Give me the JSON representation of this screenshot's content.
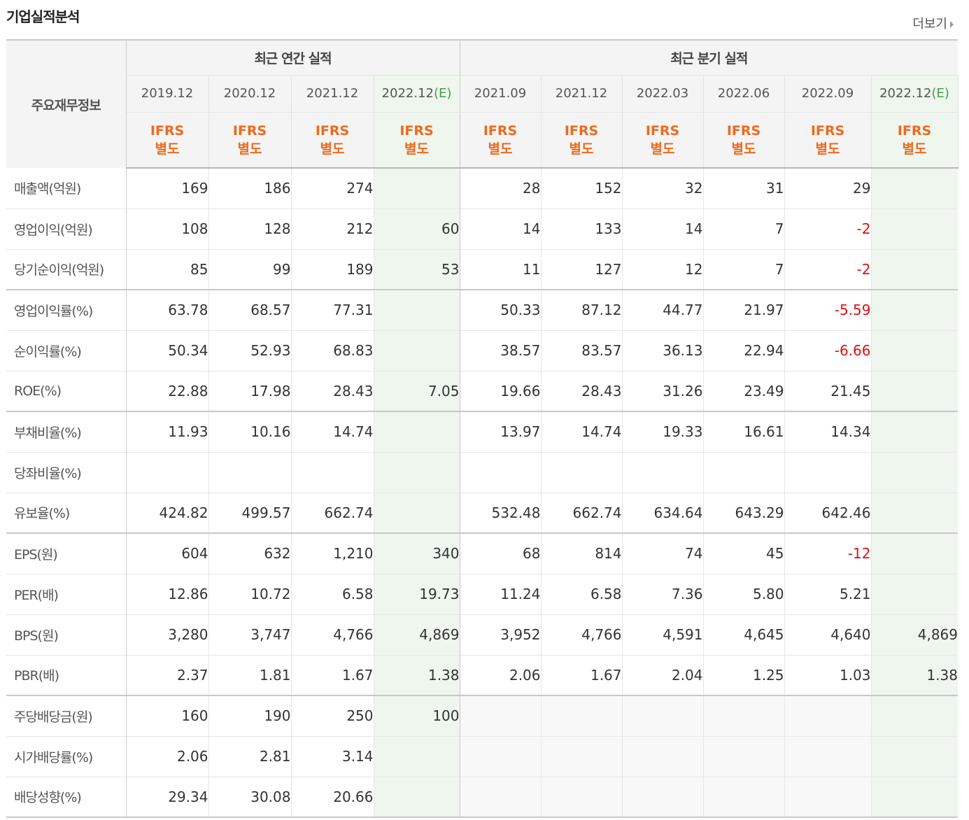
{
  "section": {
    "title": "기업실적분석",
    "more_label": "더보기"
  },
  "header": {
    "corner_label": "주요재무정보",
    "annual_group": "최근 연간 실적",
    "quarter_group": "최근 분기 실적",
    "estimate_mark": "(E)",
    "standard_line1": "IFRS",
    "standard_line2": "별도",
    "columns": [
      "2019.12",
      "2020.12",
      "2021.12",
      "2022.12",
      "2021.09",
      "2021.12",
      "2022.03",
      "2022.06",
      "2022.09",
      "2022.12"
    ]
  },
  "rows": [
    {
      "label": "매출액(억원)",
      "values": [
        "169",
        "186",
        "274",
        "",
        "28",
        "152",
        "32",
        "31",
        "29",
        ""
      ]
    },
    {
      "label": "영업이익(억원)",
      "values": [
        "108",
        "128",
        "212",
        "60",
        "14",
        "133",
        "14",
        "7",
        "-2",
        ""
      ]
    },
    {
      "label": "당기순이익(억원)",
      "values": [
        "85",
        "99",
        "189",
        "53",
        "11",
        "127",
        "12",
        "7",
        "-2",
        ""
      ]
    },
    {
      "label": "영업이익률(%)",
      "values": [
        "63.78",
        "68.57",
        "77.31",
        "",
        "50.33",
        "87.12",
        "44.77",
        "21.97",
        "-5.59",
        ""
      ]
    },
    {
      "label": "순이익률(%)",
      "values": [
        "50.34",
        "52.93",
        "68.83",
        "",
        "38.57",
        "83.57",
        "36.13",
        "22.94",
        "-6.66",
        ""
      ]
    },
    {
      "label": "ROE(%)",
      "values": [
        "22.88",
        "17.98",
        "28.43",
        "7.05",
        "19.66",
        "28.43",
        "31.26",
        "23.49",
        "21.45",
        ""
      ]
    },
    {
      "label": "부채비율(%)",
      "values": [
        "11.93",
        "10.16",
        "14.74",
        "",
        "13.97",
        "14.74",
        "19.33",
        "16.61",
        "14.34",
        ""
      ]
    },
    {
      "label": "당좌비율(%)",
      "values": [
        "",
        "",
        "",
        "",
        "",
        "",
        "",
        "",
        "",
        ""
      ]
    },
    {
      "label": "유보율(%)",
      "values": [
        "424.82",
        "499.57",
        "662.74",
        "",
        "532.48",
        "662.74",
        "634.64",
        "643.29",
        "642.46",
        ""
      ]
    },
    {
      "label": "EPS(원)",
      "values": [
        "604",
        "632",
        "1,210",
        "340",
        "68",
        "814",
        "74",
        "45",
        "-12",
        ""
      ]
    },
    {
      "label": "PER(배)",
      "values": [
        "12.86",
        "10.72",
        "6.58",
        "19.73",
        "11.24",
        "6.58",
        "7.36",
        "5.80",
        "5.21",
        ""
      ]
    },
    {
      "label": "BPS(원)",
      "values": [
        "3,280",
        "3,747",
        "4,766",
        "4,869",
        "3,952",
        "4,766",
        "4,591",
        "4,645",
        "4,640",
        "4,869"
      ]
    },
    {
      "label": "PBR(배)",
      "values": [
        "2.37",
        "1.81",
        "1.67",
        "1.38",
        "2.06",
        "1.67",
        "2.04",
        "1.25",
        "1.03",
        "1.38"
      ]
    },
    {
      "label": "주당배당금(원)",
      "values": [
        "160",
        "190",
        "250",
        "100",
        "",
        "",
        "",
        "",
        "",
        ""
      ]
    },
    {
      "label": "시가배당률(%)",
      "values": [
        "2.06",
        "2.81",
        "3.14",
        "",
        "",
        "",
        "",
        "",
        "",
        ""
      ]
    },
    {
      "label": "배당성향(%)",
      "values": [
        "29.34",
        "30.08",
        "20.66",
        "",
        "",
        "",
        "",
        "",
        "",
        ""
      ]
    }
  ],
  "colors": {
    "accent_orange": "#ee6a1e",
    "negative_red": "#dd1111",
    "estimate_green": "#4a9a4a",
    "estimate_bg": "#eef6ee"
  }
}
